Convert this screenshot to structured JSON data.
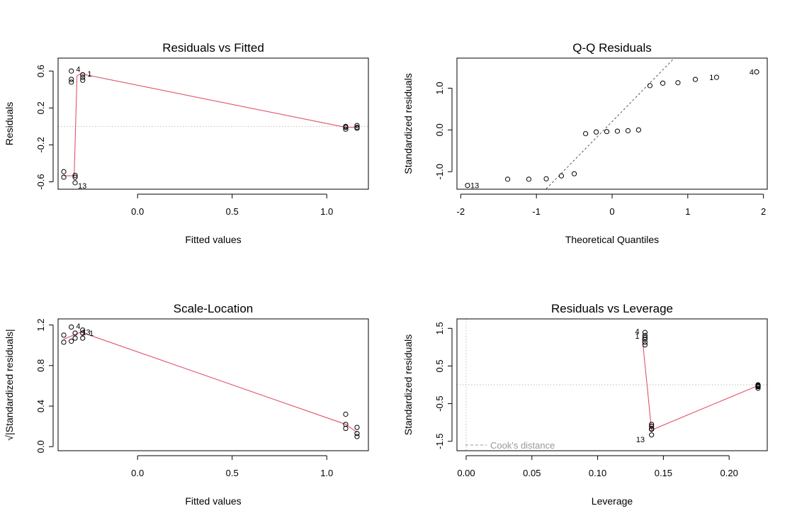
{
  "chart_data": [
    {
      "type": "scatter",
      "title": "Residuals vs Fitted",
      "xlabel": "Fitted values",
      "ylabel": "Residuals",
      "xlim": [
        -0.42,
        1.22
      ],
      "ylim": [
        -0.68,
        0.74
      ],
      "xticks": [
        {
          "v": 0,
          "label": "0.0"
        },
        {
          "v": 0.5,
          "label": "0.5"
        },
        {
          "v": 1,
          "label": "1.0"
        }
      ],
      "yticks": [
        {
          "v": -0.6,
          "label": "-0.6"
        },
        {
          "v": -0.2,
          "label": "-0.2"
        },
        {
          "v": 0.2,
          "label": "0.2"
        },
        {
          "v": 0.6,
          "label": "0.6"
        }
      ],
      "hlines": [
        {
          "y": 0,
          "style": "dotted"
        }
      ],
      "points": [
        {
          "x": -0.35,
          "y": 0.6
        },
        {
          "x": -0.35,
          "y": 0.48
        },
        {
          "x": -0.35,
          "y": 0.51
        },
        {
          "x": -0.29,
          "y": 0.56
        },
        {
          "x": -0.29,
          "y": 0.53
        },
        {
          "x": -0.29,
          "y": 0.5
        },
        {
          "x": -0.39,
          "y": -0.49
        },
        {
          "x": -0.39,
          "y": -0.55
        },
        {
          "x": -0.33,
          "y": -0.53
        },
        {
          "x": -0.33,
          "y": -0.55
        },
        {
          "x": -0.33,
          "y": -0.61
        },
        {
          "x": 1.1,
          "y": 0.0
        },
        {
          "x": 1.1,
          "y": -0.03
        },
        {
          "x": 1.1,
          "y": -0.01
        },
        {
          "x": 1.16,
          "y": 0.01
        },
        {
          "x": 1.16,
          "y": -0.01
        },
        {
          "x": 1.16,
          "y": -0.02
        }
      ],
      "smoother": [
        [
          -0.39,
          -0.535
        ],
        [
          -0.335,
          -0.535
        ],
        [
          -0.32,
          0.55
        ],
        [
          -0.3,
          0.57
        ],
        [
          1.1,
          -0.01
        ],
        [
          1.16,
          -0.01
        ]
      ],
      "point_labels": [
        {
          "text": "4",
          "x": -0.34,
          "y": 0.62,
          "pos": "right"
        },
        {
          "text": "1",
          "x": -0.28,
          "y": 0.57,
          "pos": "right"
        },
        {
          "text": "13",
          "x": -0.33,
          "y": -0.64,
          "pos": "right"
        }
      ]
    },
    {
      "type": "scatter",
      "title": "Q-Q Residuals",
      "xlabel": "Theoretical Quantiles",
      "ylabel": "Standardized residuals",
      "xlim": [
        -2.05,
        2.05
      ],
      "ylim": [
        -1.42,
        1.72
      ],
      "xticks": [
        {
          "v": -2,
          "label": "-2"
        },
        {
          "v": -1,
          "label": "-1"
        },
        {
          "v": 0,
          "label": "0"
        },
        {
          "v": 1,
          "label": "1"
        },
        {
          "v": 2,
          "label": "2"
        }
      ],
      "yticks": [
        {
          "v": -1,
          "label": "-1.0"
        },
        {
          "v": 0,
          "label": "0.0"
        },
        {
          "v": 1,
          "label": "1.0"
        }
      ],
      "refline": {
        "slope": 1.85,
        "intercept": 0.2,
        "style": "dashed"
      },
      "points": [
        {
          "x": -1.91,
          "y": -1.33
        },
        {
          "x": -1.38,
          "y": -1.18
        },
        {
          "x": -1.1,
          "y": -1.18
        },
        {
          "x": -0.87,
          "y": -1.17
        },
        {
          "x": -0.67,
          "y": -1.1
        },
        {
          "x": -0.5,
          "y": -1.05
        },
        {
          "x": -0.35,
          "y": -0.09
        },
        {
          "x": -0.21,
          "y": -0.05
        },
        {
          "x": -0.07,
          "y": -0.04
        },
        {
          "x": 0.07,
          "y": -0.03
        },
        {
          "x": 0.21,
          "y": -0.02
        },
        {
          "x": 0.35,
          "y": 0.0
        },
        {
          "x": 0.5,
          "y": 1.06
        },
        {
          "x": 0.67,
          "y": 1.12
        },
        {
          "x": 0.87,
          "y": 1.13
        },
        {
          "x": 1.1,
          "y": 1.21
        },
        {
          "x": 1.38,
          "y": 1.26
        },
        {
          "x": 1.91,
          "y": 1.39
        }
      ],
      "point_labels": [
        {
          "text": "13",
          "x": -1.91,
          "y": -1.33,
          "pos": "right"
        },
        {
          "text": "1",
          "x": 1.38,
          "y": 1.26,
          "pos": "left"
        },
        {
          "text": "4",
          "x": 1.91,
          "y": 1.39,
          "pos": "left"
        }
      ]
    },
    {
      "type": "scatter",
      "title": "Scale-Location",
      "xlabel": "Fitted values",
      "ylabel": "√|Standardized residuals|",
      "xlim": [
        -0.42,
        1.22
      ],
      "ylim": [
        -0.04,
        1.26
      ],
      "xticks": [
        {
          "v": 0,
          "label": "0.0"
        },
        {
          "v": 0.5,
          "label": "0.5"
        },
        {
          "v": 1,
          "label": "1.0"
        }
      ],
      "yticks": [
        {
          "v": 0,
          "label": "0.0"
        },
        {
          "v": 0.4,
          "label": "0.4"
        },
        {
          "v": 0.8,
          "label": "0.8"
        },
        {
          "v": 1.2,
          "label": "1.2"
        }
      ],
      "points": [
        {
          "x": -0.39,
          "y": 1.1
        },
        {
          "x": -0.39,
          "y": 1.03
        },
        {
          "x": -0.35,
          "y": 1.18
        },
        {
          "x": -0.35,
          "y": 1.04
        },
        {
          "x": -0.33,
          "y": 1.12
        },
        {
          "x": -0.33,
          "y": 1.07
        },
        {
          "x": -0.29,
          "y": 1.15
        },
        {
          "x": -0.29,
          "y": 1.12
        },
        {
          "x": -0.29,
          "y": 1.07
        },
        {
          "x": 1.1,
          "y": 0.32
        },
        {
          "x": 1.1,
          "y": 0.22
        },
        {
          "x": 1.1,
          "y": 0.18
        },
        {
          "x": 1.16,
          "y": 0.19
        },
        {
          "x": 1.16,
          "y": 0.13
        },
        {
          "x": 1.16,
          "y": 0.1
        }
      ],
      "smoother": [
        [
          -0.39,
          1.06
        ],
        [
          -0.3,
          1.13
        ],
        [
          1.1,
          0.22
        ],
        [
          1.16,
          0.14
        ]
      ],
      "point_labels": [
        {
          "text": "4",
          "x": -0.34,
          "y": 1.19,
          "pos": "right"
        },
        {
          "text": "13",
          "x": -0.31,
          "y": 1.13,
          "pos": "right"
        },
        {
          "text": "1",
          "x": -0.27,
          "y": 1.12,
          "pos": "right"
        }
      ]
    },
    {
      "type": "scatter",
      "title": "Residuals vs Leverage",
      "xlabel": "Leverage",
      "ylabel": "Standardized residuals",
      "xlim": [
        -0.007,
        0.229
      ],
      "ylim": [
        -1.75,
        1.75
      ],
      "xticks": [
        {
          "v": 0,
          "label": "0.00"
        },
        {
          "v": 0.05,
          "label": "0.05"
        },
        {
          "v": 0.1,
          "label": "0.10"
        },
        {
          "v": 0.15,
          "label": "0.15"
        },
        {
          "v": 0.2,
          "label": "0.20"
        }
      ],
      "yticks": [
        {
          "v": -1.5,
          "label": "-1.5"
        },
        {
          "v": -0.5,
          "label": "-0.5"
        },
        {
          "v": 0.5,
          "label": "0.5"
        },
        {
          "v": 1.5,
          "label": "1.5"
        }
      ],
      "hlines": [
        {
          "y": 0,
          "style": "dotted"
        }
      ],
      "vlines": [
        {
          "x": 0,
          "style": "dotted"
        }
      ],
      "points": [
        {
          "x": 0.136,
          "y": 1.39
        },
        {
          "x": 0.136,
          "y": 1.31
        },
        {
          "x": 0.136,
          "y": 1.26
        },
        {
          "x": 0.136,
          "y": 1.21
        },
        {
          "x": 0.136,
          "y": 1.13
        },
        {
          "x": 0.136,
          "y": 1.06
        },
        {
          "x": 0.141,
          "y": -1.05
        },
        {
          "x": 0.141,
          "y": -1.1
        },
        {
          "x": 0.141,
          "y": -1.17
        },
        {
          "x": 0.141,
          "y": -1.18
        },
        {
          "x": 0.141,
          "y": -1.18
        },
        {
          "x": 0.141,
          "y": -1.33
        },
        {
          "x": 0.222,
          "y": 0.0
        },
        {
          "x": 0.222,
          "y": -0.02
        },
        {
          "x": 0.222,
          "y": -0.03
        },
        {
          "x": 0.222,
          "y": -0.04
        },
        {
          "x": 0.222,
          "y": -0.05
        },
        {
          "x": 0.222,
          "y": -0.09
        }
      ],
      "smoother": [
        [
          0.134,
          1.23
        ],
        [
          0.141,
          -1.2
        ],
        [
          0.222,
          -0.02
        ]
      ],
      "point_labels": [
        {
          "text": "4",
          "x": 0.134,
          "y": 1.42,
          "pos": "left"
        },
        {
          "text": "1",
          "x": 0.134,
          "y": 1.3,
          "pos": "left"
        },
        {
          "text": "13",
          "x": 0.138,
          "y": -1.45,
          "pos": "left"
        }
      ],
      "legend": {
        "label": "Cook's distance",
        "style": "dashed",
        "position": "bottom-left"
      }
    }
  ],
  "colors": {
    "smoother": "#df536b",
    "reference": "#555555",
    "guide": "#bebebe",
    "legend": "#999999",
    "points": "#000000"
  }
}
